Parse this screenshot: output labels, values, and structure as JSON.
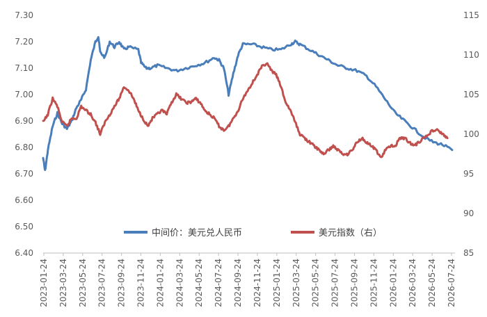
{
  "chart_data": {
    "type": "line",
    "left_axis": {
      "min": 6.4,
      "max": 7.3,
      "ticks": [
        "6.40",
        "6.50",
        "6.60",
        "6.70",
        "6.80",
        "6.90",
        "7.00",
        "7.10",
        "7.20",
        "7.30"
      ]
    },
    "right_axis": {
      "min": 85,
      "max": 115,
      "ticks": [
        "85",
        "90",
        "95",
        "100",
        "105",
        "110",
        "115"
      ]
    },
    "x_ticks": [
      "2023-01-24",
      "2023-03-24",
      "2023-05-24",
      "2023-07-24",
      "2023-09-24",
      "2023-11-24",
      "2024-01-24",
      "2024-03-24",
      "2024-05-24",
      "2024-07-24",
      "2024-09-24",
      "2024-11-24",
      "2025-01-24",
      "2025-03-24",
      "2025-05-24",
      "2025-07-24",
      "2025-09-24",
      "2025-11-24",
      "2026-01-24",
      "2026-03-24",
      "2026-05-24",
      "2026-07-24"
    ],
    "legend_position": "bottom-center",
    "grid": false,
    "series": [
      {
        "name": "中间价：美元兑人民币",
        "axis": "left",
        "color": "#4a7ebb",
        "points": [
          [
            0,
            6.76
          ],
          [
            0.2,
            6.71
          ],
          [
            0.5,
            6.79
          ],
          [
            1.0,
            6.88
          ],
          [
            1.5,
            6.93
          ],
          [
            2.0,
            6.89
          ],
          [
            2.5,
            6.87
          ],
          [
            3.0,
            6.9
          ],
          [
            3.5,
            6.95
          ],
          [
            4.0,
            6.98
          ],
          [
            4.5,
            7.02
          ],
          [
            5.0,
            7.13
          ],
          [
            5.5,
            7.2
          ],
          [
            5.8,
            7.22
          ],
          [
            6.0,
            7.16
          ],
          [
            6.5,
            7.14
          ],
          [
            7.0,
            7.2
          ],
          [
            7.5,
            7.18
          ],
          [
            8.0,
            7.2
          ],
          [
            8.5,
            7.17
          ],
          [
            9.0,
            7.18
          ],
          [
            10.0,
            7.17
          ],
          [
            10.3,
            7.12
          ],
          [
            10.8,
            7.1
          ],
          [
            11.3,
            7.1
          ],
          [
            12.0,
            7.11
          ],
          [
            13.0,
            7.1
          ],
          [
            14.0,
            7.09
          ],
          [
            15.0,
            7.1
          ],
          [
            16.0,
            7.11
          ],
          [
            17.0,
            7.12
          ],
          [
            18.0,
            7.14
          ],
          [
            18.5,
            7.13
          ],
          [
            19.0,
            7.1
          ],
          [
            19.5,
            7.0
          ],
          [
            20.0,
            7.08
          ],
          [
            20.5,
            7.15
          ],
          [
            21.0,
            7.19
          ],
          [
            22.0,
            7.19
          ],
          [
            23.0,
            7.18
          ],
          [
            24.0,
            7.17
          ],
          [
            25.0,
            7.17
          ],
          [
            26.0,
            7.19
          ],
          [
            26.5,
            7.2
          ],
          [
            27.0,
            7.19
          ],
          [
            28.0,
            7.17
          ],
          [
            29.0,
            7.15
          ],
          [
            30.0,
            7.13
          ],
          [
            31.0,
            7.11
          ],
          [
            32.0,
            7.1
          ],
          [
            33.0,
            7.09
          ],
          [
            34.0,
            7.07
          ],
          [
            35.0,
            7.03
          ],
          [
            36.0,
            6.98
          ],
          [
            37.0,
            6.93
          ],
          [
            38.0,
            6.9
          ],
          [
            39.0,
            6.87
          ],
          [
            40.0,
            6.84
          ],
          [
            41.0,
            6.82
          ],
          [
            42.0,
            6.81
          ],
          [
            43.0,
            6.79
          ]
        ]
      },
      {
        "name": "美元指数（右）",
        "axis": "right",
        "color": "#c0504d",
        "points": [
          [
            0,
            101.5
          ],
          [
            0.5,
            102.5
          ],
          [
            1.0,
            104.5
          ],
          [
            1.5,
            103.5
          ],
          [
            2.0,
            101.5
          ],
          [
            2.5,
            101.0
          ],
          [
            3.0,
            102.0
          ],
          [
            3.5,
            102.0
          ],
          [
            4.0,
            103.5
          ],
          [
            4.5,
            103.0
          ],
          [
            5.0,
            102.5
          ],
          [
            5.5,
            101.5
          ],
          [
            6.0,
            100.0
          ],
          [
            6.5,
            101.5
          ],
          [
            7.0,
            102.5
          ],
          [
            7.5,
            103.5
          ],
          [
            8.0,
            104.5
          ],
          [
            8.5,
            106.0
          ],
          [
            9.0,
            105.5
          ],
          [
            9.5,
            104.5
          ],
          [
            10.0,
            103.0
          ],
          [
            10.5,
            102.0
          ],
          [
            11.0,
            101.0
          ],
          [
            11.5,
            102.0
          ],
          [
            12.0,
            102.5
          ],
          [
            12.5,
            103.0
          ],
          [
            13.0,
            102.5
          ],
          [
            13.5,
            104.0
          ],
          [
            14.0,
            105.0
          ],
          [
            14.5,
            104.5
          ],
          [
            15.0,
            104.0
          ],
          [
            15.5,
            104.0
          ],
          [
            16.0,
            104.5
          ],
          [
            16.5,
            104.0
          ],
          [
            17.0,
            103.0
          ],
          [
            17.5,
            102.5
          ],
          [
            18.0,
            102.0
          ],
          [
            18.5,
            101.0
          ],
          [
            19.0,
            100.5
          ],
          [
            19.5,
            101.0
          ],
          [
            20.0,
            102.0
          ],
          [
            20.5,
            103.0
          ],
          [
            21.0,
            104.5
          ],
          [
            21.5,
            105.5
          ],
          [
            22.0,
            106.5
          ],
          [
            22.5,
            107.5
          ],
          [
            23.0,
            108.5
          ],
          [
            23.5,
            109.0
          ],
          [
            24.0,
            108.0
          ],
          [
            24.5,
            107.5
          ],
          [
            25.0,
            106.0
          ],
          [
            25.5,
            104.0
          ],
          [
            26.0,
            103.0
          ],
          [
            26.5,
            101.5
          ],
          [
            27.0,
            100.0
          ],
          [
            27.5,
            99.5
          ],
          [
            28.0,
            99.0
          ],
          [
            28.5,
            98.5
          ],
          [
            29.0,
            98.0
          ],
          [
            29.5,
            97.5
          ],
          [
            30.0,
            98.0
          ],
          [
            30.5,
            98.5
          ],
          [
            31.0,
            98.0
          ],
          [
            31.5,
            97.5
          ],
          [
            32.0,
            97.5
          ],
          [
            32.5,
            98.0
          ],
          [
            33.0,
            99.0
          ],
          [
            33.5,
            99.5
          ],
          [
            34.0,
            99.0
          ],
          [
            34.5,
            98.5
          ],
          [
            35.0,
            98.0
          ],
          [
            35.5,
            97.0
          ],
          [
            36.0,
            98.0
          ],
          [
            36.5,
            98.5
          ],
          [
            37.0,
            98.5
          ],
          [
            37.5,
            99.5
          ],
          [
            38.0,
            99.5
          ],
          [
            38.5,
            99.0
          ],
          [
            39.0,
            98.5
          ],
          [
            39.5,
            99.0
          ],
          [
            40.0,
            99.5
          ],
          [
            40.5,
            100.0
          ],
          [
            41.0,
            100.5
          ],
          [
            41.5,
            100.5
          ],
          [
            42.0,
            100.0
          ],
          [
            42.5,
            99.5
          ]
        ]
      }
    ]
  }
}
